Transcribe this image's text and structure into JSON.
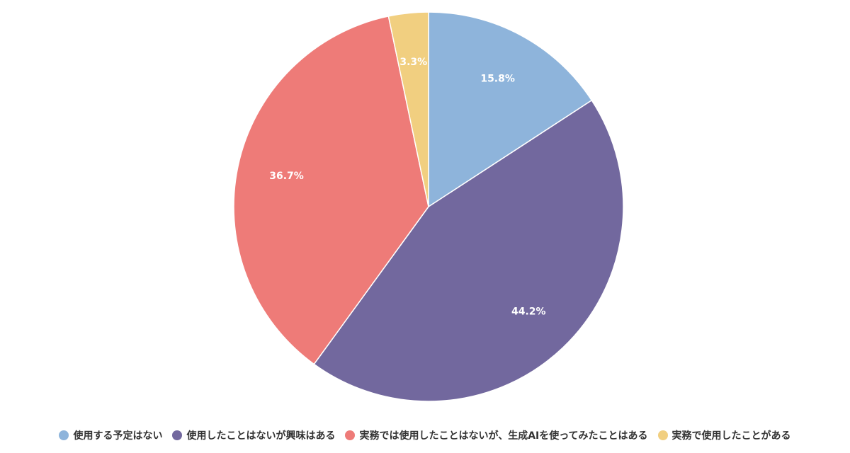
{
  "chart_data": {
    "type": "pie",
    "title": "",
    "start_angle": "12 o'clock",
    "direction": "clockwise",
    "legend_position": "bottom-center",
    "slices": [
      {
        "name": "使用する予定はない",
        "value": 15.8,
        "label": "15.8%",
        "color": "#8EB4DB"
      },
      {
        "name": "使用したことはないが興味はある",
        "value": 44.2,
        "label": "44.2%",
        "color": "#72689E"
      },
      {
        "name": "実務では使用したことはないが、生成AIを使ってみたことはある",
        "value": 36.7,
        "label": "36.7%",
        "color": "#EE7B78"
      },
      {
        "name": "実務で使用したことがある",
        "value": 3.3,
        "label": "3.3%",
        "color": "#F1CF80"
      }
    ]
  }
}
